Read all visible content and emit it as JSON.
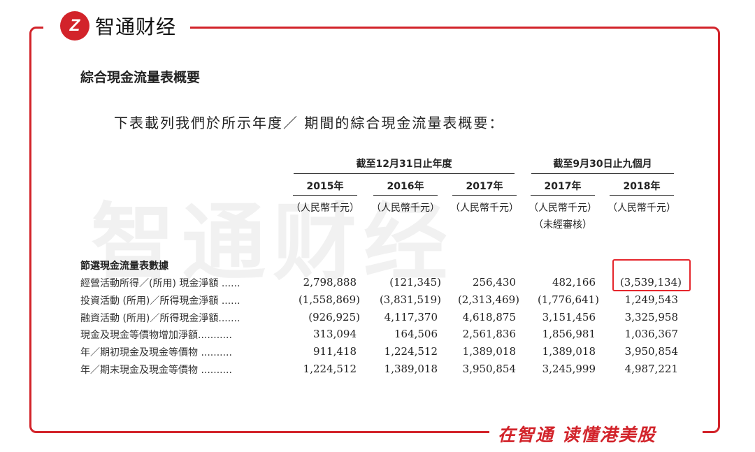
{
  "brand": {
    "logo_mark": "Z",
    "name": "智通财经",
    "slogan": "在智通 读懂港美股",
    "color": "#d2232a"
  },
  "watermark": "智通财经",
  "title": "綜合現金流量表概要",
  "intro": "下表載列我們於所示年度／ 期間的綜合現金流量表概要：",
  "header": {
    "group1": "截至12月31日止年度",
    "group2": "截至9月30日止九個月",
    "years": [
      "2015年",
      "2016年",
      "2017年",
      "2017年",
      "2018年"
    ],
    "units": [
      "（人民幣千元）",
      "（人民幣千元）",
      "（人民幣千元）",
      "（人民幣千元）",
      "（人民幣千元）"
    ],
    "unaudited": "（未經審核）"
  },
  "section": "節選現金流量表數據",
  "rows": [
    {
      "label": "經營活動所得／(所用) 現金淨額 ......",
      "values": [
        "2,798,888",
        "(121,345)",
        "256,430",
        "482,166",
        "(3,539,134)"
      ]
    },
    {
      "label": "投資活動 (所用)／所得現金淨額 ......",
      "values": [
        "(1,558,869)",
        "(3,831,519)",
        "(2,313,469)",
        "(1,776,641)",
        "1,249,543"
      ]
    },
    {
      "label": "融資活動 (所用)／所得現金淨額.......",
      "values": [
        "(926,925)",
        "4,117,370",
        "4,618,875",
        "3,151,456",
        "3,325,958"
      ]
    },
    {
      "label": "現金及現金等價物增加淨額...........",
      "values": [
        "313,094",
        "164,506",
        "2,561,836",
        "1,856,981",
        "1,036,367"
      ]
    },
    {
      "label": "年／期初現金及現金等價物 ..........",
      "values": [
        "911,418",
        "1,224,512",
        "1,389,018",
        "1,389,018",
        "3,950,854"
      ]
    },
    {
      "label": "年／期末現金及現金等價物 ..........",
      "values": [
        "1,224,512",
        "1,389,018",
        "3,950,854",
        "3,245,999",
        "4,987,221"
      ]
    }
  ],
  "highlight_color": "#e5262c"
}
